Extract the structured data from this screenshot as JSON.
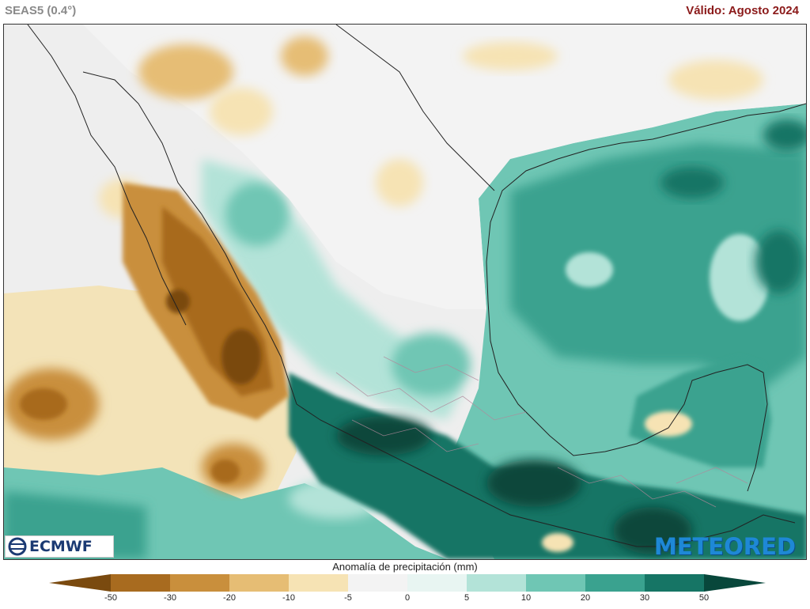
{
  "header": {
    "model": "SEAS5 (0.4°)",
    "valid": "Válido: Agosto 2024"
  },
  "map": {
    "variable": "precipitation anomaly",
    "region": "Mexico and surroundings",
    "logos": {
      "left": "ECMWF",
      "right": "METEORED"
    }
  },
  "legend": {
    "title": "Anomalía de precipitación (mm)",
    "ticks": [
      "-50",
      "-30",
      "-20",
      "-10",
      "-5",
      "0",
      "5",
      "10",
      "20",
      "30",
      "50"
    ],
    "colors": [
      "#7a4a0f",
      "#a86b1f",
      "#c98f3c",
      "#e6bd74",
      "#f6e3b4",
      "#f3f3f3",
      "#e8f5f2",
      "#b3e3d8",
      "#6fc6b4",
      "#3aa28f",
      "#167565",
      "#08473b"
    ]
  },
  "colors": {
    "land_base": "#efefef",
    "title_red": "#8b1a1a",
    "meteored_blue": "#1e88d6"
  }
}
